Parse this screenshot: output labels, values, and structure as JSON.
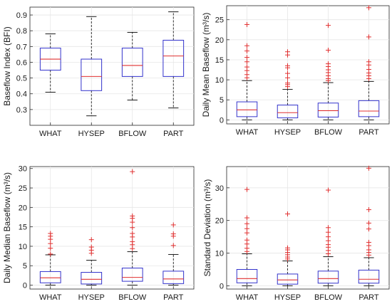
{
  "colors": {
    "box": "#3333cc",
    "median": "#e03030",
    "outlier": "#e03030",
    "whisker": "#000000",
    "grid": "#e6e6e6"
  },
  "chart_data": [
    {
      "type": "boxplot",
      "ylabel": "Baseflow Index (BFI)",
      "ylim": [
        0.2,
        0.95
      ],
      "yticks": [
        "0.3",
        "0.4",
        "0.5",
        "0.6",
        "0.7",
        "0.8",
        "0.9"
      ],
      "grid": true,
      "categories": [
        "WHAT",
        "HYSEP",
        "BFLOW",
        "PART"
      ],
      "boxes": [
        {
          "whislo": 0.41,
          "q1": 0.55,
          "med": 0.62,
          "q3": 0.69,
          "whishi": 0.78,
          "fliers": []
        },
        {
          "whislo": 0.26,
          "q1": 0.42,
          "med": 0.51,
          "q3": 0.62,
          "whishi": 0.89,
          "fliers": []
        },
        {
          "whislo": 0.36,
          "q1": 0.51,
          "med": 0.58,
          "q3": 0.69,
          "whishi": 0.79,
          "fliers": []
        },
        {
          "whislo": 0.31,
          "q1": 0.51,
          "med": 0.64,
          "q3": 0.74,
          "whishi": 0.92,
          "fliers": []
        }
      ]
    },
    {
      "type": "boxplot",
      "ylabel": "Daily Mean Baseflow (m³/s)",
      "ylim": [
        -1,
        28.5
      ],
      "yticks": [
        "0",
        "5",
        "10",
        "15",
        "20",
        "25"
      ],
      "grid": true,
      "categories": [
        "WHAT",
        "HYSEP",
        "BFLOW",
        "PART"
      ],
      "boxes": [
        {
          "whislo": 0,
          "q1": 0.8,
          "med": 2.5,
          "q3": 4.5,
          "whishi": 9.8,
          "fliers": [
            10.5,
            11.3,
            12.3,
            13.2,
            14.5,
            15.6,
            17.2,
            18.5,
            23.8
          ]
        },
        {
          "whislo": 0,
          "q1": 0.5,
          "med": 1.8,
          "q3": 3.7,
          "whishi": 7.6,
          "fliers": [
            8.3,
            8.8,
            9.2,
            10.5,
            11.6,
            13.0,
            13.5,
            16.2,
            17.0
          ]
        },
        {
          "whislo": 0,
          "q1": 0.7,
          "med": 2.3,
          "q3": 4.2,
          "whishi": 9.3,
          "fliers": [
            9.8,
            10.3,
            11.0,
            11.8,
            12.5,
            13.3,
            14.0,
            17.4,
            23.6
          ]
        },
        {
          "whislo": 0,
          "q1": 0.8,
          "med": 2.2,
          "q3": 4.8,
          "whishi": 9.6,
          "fliers": [
            10.3,
            11.0,
            11.7,
            12.6,
            13.7,
            14.5,
            20.7,
            28.0
          ]
        }
      ]
    },
    {
      "type": "boxplot",
      "ylabel": "Daily Median Baseflow (m³/s)",
      "ylim": [
        -1,
        30.5
      ],
      "yticks": [
        "0",
        "5",
        "10",
        "15",
        "20",
        "25",
        "30"
      ],
      "grid": true,
      "categories": [
        "WHAT",
        "HYSEP",
        "BFLOW",
        "PART"
      ],
      "boxes": [
        {
          "whislo": 0,
          "q1": 0.6,
          "med": 1.9,
          "q3": 3.5,
          "whishi": 7.8,
          "fliers": [
            8.0,
            9.5,
            10.7,
            11.8,
            12.6,
            13.3
          ]
        },
        {
          "whislo": 0,
          "q1": 0.3,
          "med": 1.5,
          "q3": 3.3,
          "whishi": 6.4,
          "fliers": [
            8.2,
            9.0,
            9.8,
            11.7
          ]
        },
        {
          "whislo": 0,
          "q1": 1.0,
          "med": 2.0,
          "q3": 4.4,
          "whishi": 8.6,
          "fliers": [
            9.4,
            10.4,
            11.2,
            12.4,
            13.3,
            14.8,
            16.2,
            17.2,
            17.8,
            29.2
          ]
        },
        {
          "whislo": 0,
          "q1": 0.4,
          "med": 1.6,
          "q3": 3.6,
          "whishi": 7.9,
          "fliers": [
            10.2,
            12.6,
            13.2,
            15.5
          ]
        }
      ]
    },
    {
      "type": "boxplot",
      "ylabel": "Standard Deviation (m³/s)",
      "ylim": [
        -1,
        36.5
      ],
      "yticks": [
        "0",
        "10",
        "20",
        "30"
      ],
      "grid": true,
      "categories": [
        "WHAT",
        "HYSEP",
        "BFLOW",
        "PART"
      ],
      "boxes": [
        {
          "whislo": 0,
          "q1": 0.9,
          "med": 2.2,
          "q3": 5.0,
          "whishi": 9.8,
          "fliers": [
            10.5,
            11.5,
            12.8,
            14.0,
            16.2,
            17.5,
            19.0,
            20.8,
            29.5
          ]
        },
        {
          "whislo": 0,
          "q1": 0.5,
          "med": 1.8,
          "q3": 3.6,
          "whishi": 7.6,
          "fliers": [
            8.2,
            8.8,
            9.5,
            10.2,
            11.0,
            11.6,
            22.0
          ]
        },
        {
          "whislo": 0,
          "q1": 0.8,
          "med": 2.2,
          "q3": 4.5,
          "whishi": 8.9,
          "fliers": [
            9.8,
            10.8,
            11.8,
            12.6,
            13.8,
            15.0,
            16.4,
            17.8,
            29.3
          ]
        },
        {
          "whislo": 0,
          "q1": 0.8,
          "med": 2.0,
          "q3": 4.8,
          "whishi": 8.6,
          "fliers": [
            9.4,
            10.2,
            11.0,
            12.3,
            13.3,
            17.4,
            19.2,
            23.3,
            36.0
          ]
        }
      ]
    }
  ]
}
